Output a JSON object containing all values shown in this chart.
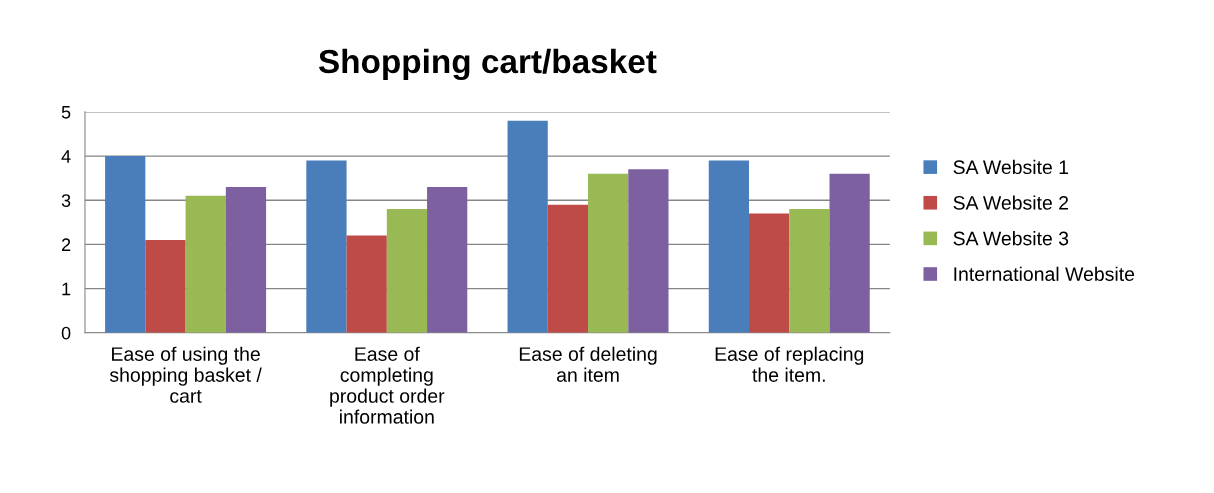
{
  "chart_data": {
    "type": "bar",
    "title": "Shopping cart/basket",
    "categories": [
      "Ease of using the\nshopping basket /\ncart",
      "Ease of\ncompleting\nproduct order\ninformation",
      "Ease of deleting\nan item",
      "Ease of replacing\nthe item."
    ],
    "series": [
      {
        "name": "SA Website 1",
        "color": "#4a7ebb",
        "values": [
          4.0,
          3.9,
          4.8,
          3.9
        ]
      },
      {
        "name": "SA Website 2",
        "color": "#be4b48",
        "values": [
          2.1,
          2.2,
          2.9,
          2.7
        ]
      },
      {
        "name": "SA Website 3",
        "color": "#98b954",
        "values": [
          3.1,
          2.8,
          3.6,
          2.8
        ]
      },
      {
        "name": "International Website",
        "color": "#7d60a0",
        "values": [
          3.3,
          3.3,
          3.7,
          3.6
        ]
      }
    ],
    "ylim": [
      0,
      5
    ],
    "yticks": [
      0,
      1,
      2,
      3,
      4,
      5
    ],
    "grid": "y",
    "legend": "right"
  }
}
